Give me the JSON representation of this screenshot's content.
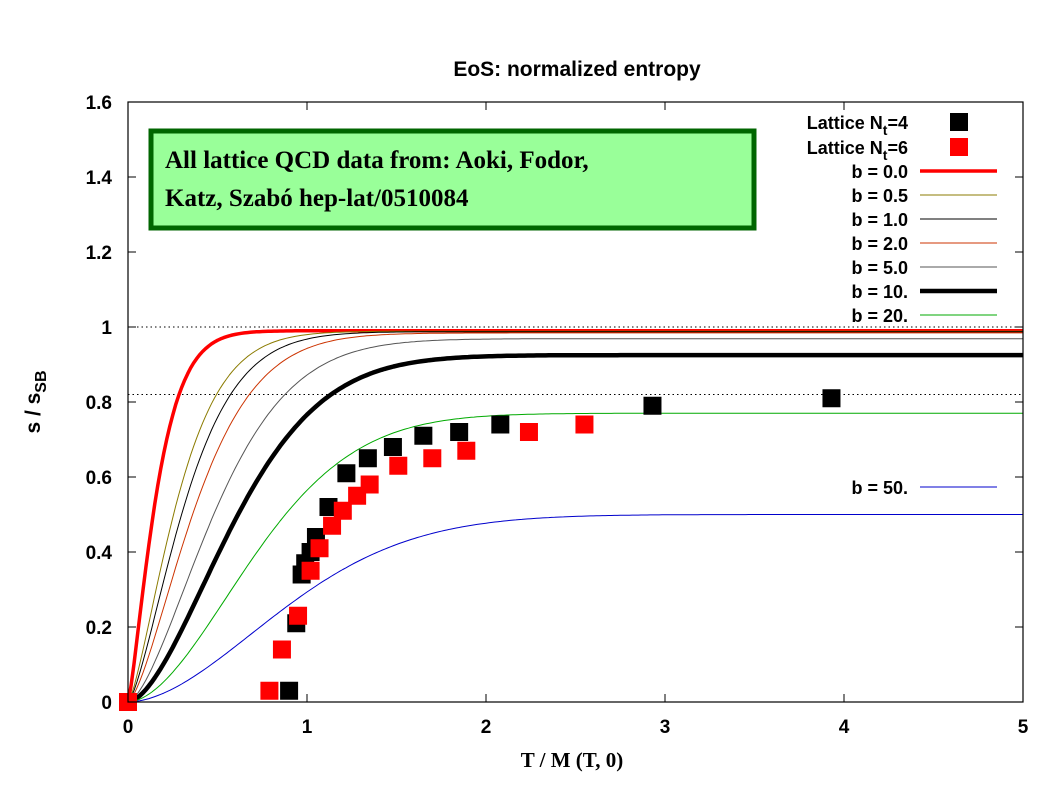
{
  "chart_data": {
    "type": "scatter",
    "title": "EoS: normalized entropy",
    "xlabel": "T / M (T, 0)",
    "ylabel_main": "s / s",
    "ylabel_sub": "SB",
    "xlim": [
      0,
      5
    ],
    "ylim": [
      0,
      1.6
    ],
    "x_ticks": [
      "0",
      "1",
      "2",
      "3",
      "4",
      "5"
    ],
    "y_ticks": [
      "0",
      "0.2",
      "0.4",
      "0.6",
      "0.8",
      "1",
      "1.2",
      "1.4",
      "1.6"
    ],
    "reference_lines": [
      1.0,
      0.82
    ],
    "legend_position": "top-right",
    "annotation": {
      "line1": "All lattice QCD data from:  Aoki, Fodor,",
      "line2": "Katz, Szabó  hep-lat/0510084",
      "fill": "#99ff99",
      "border": "#006600"
    },
    "lattice_series": [
      {
        "name_main": "Lattice N",
        "name_sub": "t",
        "name_tail": "=4",
        "color": "#000000",
        "x": [
          0.0,
          0.9,
          0.94,
          0.97,
          0.99,
          1.02,
          1.05,
          1.12,
          1.22,
          1.34,
          1.48,
          1.65,
          1.85,
          2.08,
          2.93,
          3.93
        ],
        "y": [
          0.0,
          0.03,
          0.21,
          0.34,
          0.37,
          0.4,
          0.44,
          0.52,
          0.61,
          0.65,
          0.68,
          0.71,
          0.72,
          0.74,
          0.79,
          0.81
        ]
      },
      {
        "name_main": "Lattice N",
        "name_sub": "t",
        "name_tail": "=6",
        "color": "#ff0000",
        "x": [
          0.0,
          0.79,
          0.86,
          0.95,
          1.02,
          1.07,
          1.14,
          1.2,
          1.28,
          1.35,
          1.51,
          1.7,
          1.89,
          2.24,
          2.55
        ],
        "y": [
          0.0,
          0.03,
          0.14,
          0.23,
          0.35,
          0.41,
          0.47,
          0.51,
          0.55,
          0.58,
          0.63,
          0.65,
          0.67,
          0.72,
          0.74
        ]
      }
    ],
    "curve_series": [
      {
        "name": "b = 0.0",
        "b": 0.0,
        "color": "#ff0000",
        "width": 3.5
      },
      {
        "name": "b = 0.5",
        "b": 0.5,
        "color": "#8b7b00",
        "width": 1
      },
      {
        "name": "b = 1.0",
        "b": 1.0,
        "color": "#000000",
        "width": 1
      },
      {
        "name": "b = 2.0",
        "b": 2.0,
        "color": "#cc3300",
        "width": 1
      },
      {
        "name": "b = 5.0",
        "b": 5.0,
        "color": "#555555",
        "width": 1
      },
      {
        "name": "b = 10.",
        "b": 10.0,
        "color": "#000000",
        "width": 4.5
      },
      {
        "name": "b = 20.",
        "b": 20.0,
        "color": "#00aa00",
        "width": 1
      },
      {
        "name": "b = 50.",
        "b": 50.0,
        "color": "#0000cc",
        "width": 1
      }
    ]
  }
}
